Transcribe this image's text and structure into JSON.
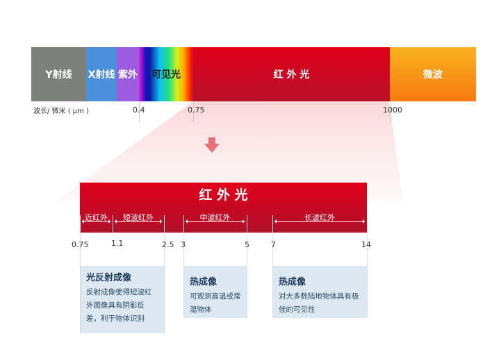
{
  "spectrum": {
    "segments": [
      {
        "label": "Y射线",
        "color": "#7d817c"
      },
      {
        "label": "X射线",
        "color": "#4a8fd8"
      },
      {
        "label": "紫外",
        "color": "#9c5ce0"
      },
      {
        "label": "可见光",
        "color": "rainbow"
      },
      {
        "label": "红 外 光",
        "color": "#c8102e"
      },
      {
        "label": "微波",
        "color": "#f7931e"
      }
    ],
    "axis_label": "波长/ 微米 ( μm )",
    "ticks": [
      "0.4",
      "0.75",
      "1000"
    ]
  },
  "infrared": {
    "title": "红 外 光",
    "bands": [
      "近红外",
      "短波红外",
      "中波红外",
      "长波红外"
    ],
    "ticks": [
      "0.75",
      "1.1",
      "2.5",
      "3",
      "5",
      "7",
      "14"
    ],
    "boxes": [
      {
        "title": "光反射成像",
        "text": "反射成像使得短波红外图像具有阴影反差，利于物体识别"
      },
      {
        "title": "热成像",
        "text": "可观测高温或常温物体"
      },
      {
        "title": "热成像",
        "text": "对大多数陆地物体具有极佳的可见性"
      }
    ]
  }
}
